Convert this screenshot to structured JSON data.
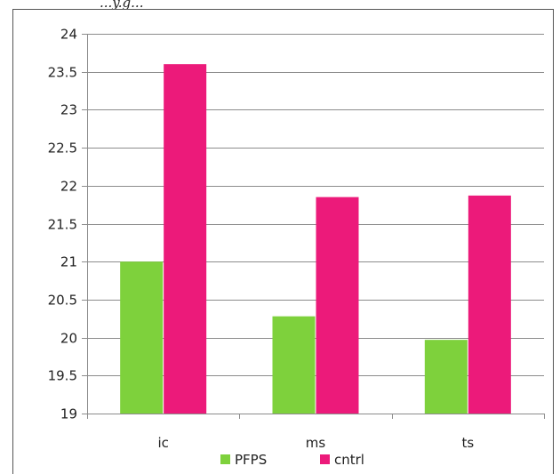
{
  "header_text": "...y.g...",
  "chart_data": {
    "type": "bar",
    "title": "",
    "xlabel": "",
    "ylabel": "",
    "categories": [
      "ic",
      "ms",
      "ts"
    ],
    "series": [
      {
        "name": "PFPS",
        "values": [
          21.0,
          20.28,
          19.97
        ],
        "color": "#7ed13c"
      },
      {
        "name": "cntrl",
        "values": [
          23.6,
          21.85,
          21.87
        ],
        "color": "#ec1a7a"
      }
    ],
    "ylim": [
      19,
      24
    ],
    "yticks": [
      "19",
      "19.5",
      "20",
      "20.5",
      "21",
      "21.5",
      "22",
      "22.5",
      "23",
      "23.5",
      "24"
    ],
    "grid": true,
    "legend_position": "bottom"
  }
}
